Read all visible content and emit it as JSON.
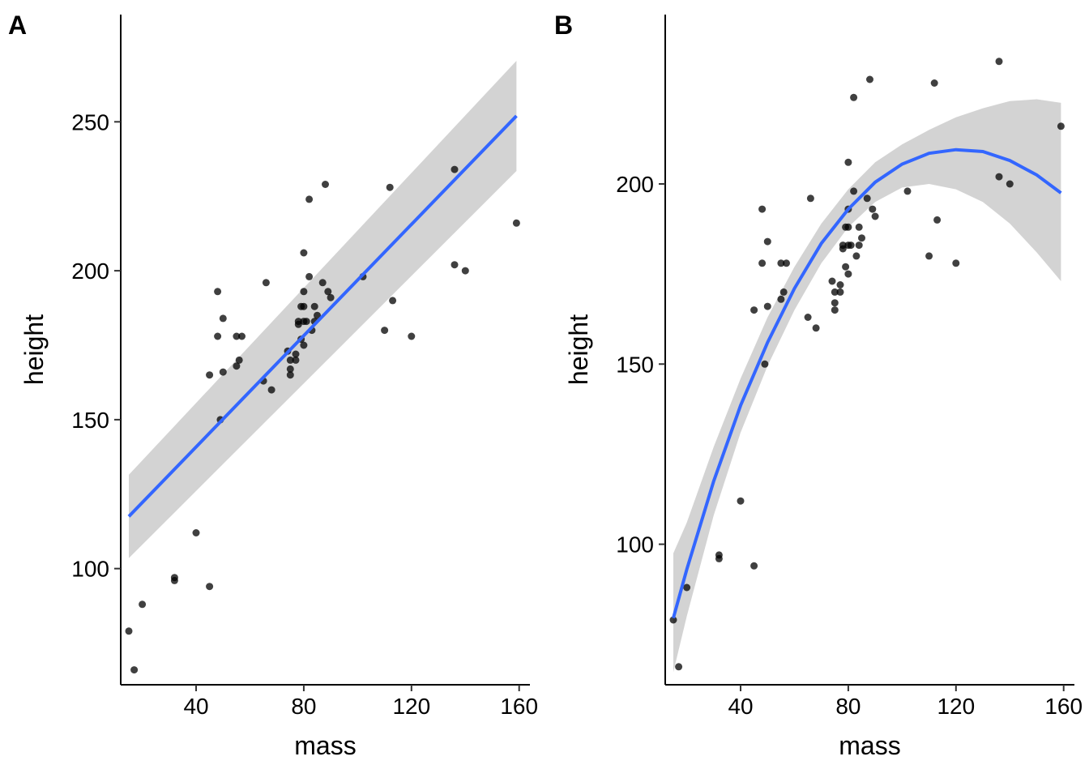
{
  "chart_data": [
    {
      "type": "scatter",
      "panel_tag": "A",
      "xlabel": "mass",
      "ylabel": "height",
      "xlim": [
        12,
        164
      ],
      "ylim": [
        61,
        286
      ],
      "xticks": [
        40,
        80,
        120,
        160
      ],
      "yticks": [
        100,
        150,
        200,
        250
      ],
      "grid": false,
      "smooth": {
        "method": "linear",
        "color": "#3366ff",
        "band_color": "#d3d3d3",
        "x": [
          15,
          159
        ],
        "y": [
          117.5,
          252
        ],
        "band_upper": [
          131.5,
          270.5
        ],
        "band_lower": [
          103.5,
          233.5
        ]
      },
      "points": {
        "x": [
          15,
          17,
          20,
          32,
          32,
          40,
          45,
          45,
          48,
          48,
          49,
          50,
          50,
          55,
          55,
          56,
          57,
          65,
          66,
          68,
          74,
          75,
          75,
          75,
          77,
          77,
          78,
          78,
          79,
          79,
          80,
          80,
          80,
          80,
          80,
          81,
          82,
          82,
          83,
          84,
          84,
          85,
          87,
          88,
          89,
          90,
          102,
          110,
          112,
          113,
          120,
          136,
          136,
          140,
          159
        ],
        "y": [
          79,
          66,
          88,
          96,
          97,
          112,
          94,
          165,
          178,
          193,
          150,
          166,
          184,
          168,
          178,
          170,
          178,
          163,
          196,
          160,
          173,
          170,
          167,
          165,
          172,
          170,
          182,
          183,
          188,
          177,
          193,
          206,
          188,
          183,
          175,
          183,
          224,
          198,
          180,
          188,
          183,
          185,
          196,
          229,
          193,
          191,
          198,
          180,
          228,
          190,
          178,
          234,
          202,
          200,
          216
        ]
      }
    },
    {
      "type": "scatter",
      "panel_tag": "B",
      "xlabel": "mass",
      "ylabel": "height",
      "xlim": [
        12,
        164
      ],
      "ylim": [
        61,
        247
      ],
      "xticks": [
        40,
        80,
        120,
        160
      ],
      "yticks": [
        100,
        150,
        200
      ],
      "grid": false,
      "smooth": {
        "method": "quadratic",
        "color": "#3366ff",
        "band_color": "#d3d3d3",
        "x": [
          15,
          20,
          30,
          40,
          50,
          60,
          70,
          80,
          90,
          100,
          110,
          120,
          130,
          140,
          150,
          159
        ],
        "y": [
          79.5,
          93,
          117.5,
          138.5,
          156,
          171,
          183.5,
          193,
          200.5,
          205.5,
          208.5,
          209.5,
          209,
          206.5,
          202.5,
          197.5
        ],
        "band_upper": [
          97.5,
          106,
          127,
          146,
          163,
          177,
          189,
          198.5,
          206,
          211,
          215,
          218.5,
          221,
          223,
          223.5,
          222.5
        ],
        "band_lower": [
          64.5,
          80,
          108,
          131,
          149.5,
          165,
          178,
          188,
          195,
          199,
          200,
          198.5,
          195,
          189,
          181,
          173
        ]
      },
      "points": {
        "x": [
          15,
          17,
          20,
          32,
          32,
          40,
          45,
          45,
          48,
          48,
          49,
          50,
          50,
          55,
          55,
          56,
          57,
          65,
          66,
          68,
          74,
          75,
          75,
          75,
          77,
          77,
          78,
          78,
          79,
          79,
          80,
          80,
          80,
          80,
          80,
          81,
          82,
          82,
          83,
          84,
          84,
          85,
          87,
          88,
          89,
          90,
          102,
          110,
          112,
          113,
          120,
          136,
          136,
          140,
          159
        ],
        "y": [
          79,
          66,
          88,
          96,
          97,
          112,
          94,
          165,
          178,
          193,
          150,
          166,
          184,
          168,
          178,
          170,
          178,
          163,
          196,
          160,
          173,
          170,
          167,
          165,
          172,
          170,
          182,
          183,
          188,
          177,
          193,
          206,
          188,
          183,
          175,
          183,
          224,
          198,
          180,
          188,
          183,
          185,
          196,
          229,
          193,
          191,
          198,
          180,
          228,
          190,
          178,
          234,
          202,
          200,
          216
        ]
      }
    }
  ]
}
